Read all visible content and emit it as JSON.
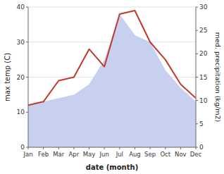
{
  "chart_data": {
    "type": "line",
    "categories": [
      "Jan",
      "Feb",
      "Mar",
      "Apr",
      "May",
      "Jun",
      "Jul",
      "Aug",
      "Sep",
      "Oct",
      "Nov",
      "Dec"
    ],
    "series": [
      {
        "type": "area",
        "color": "#c8d0f0",
        "values": [
          12,
          13,
          14,
          15,
          18,
          25,
          38,
          32,
          30,
          22,
          17,
          13
        ]
      },
      {
        "type": "line",
        "color": "#c0392b",
        "values": [
          12,
          13,
          19,
          20,
          28,
          23,
          38,
          39,
          30,
          25,
          18,
          14
        ]
      }
    ],
    "x_label": "date (month)",
    "y_label": "max temp (C)",
    "y2_label": "med. precipitation (kg/m2)",
    "ylim": [
      0,
      40
    ],
    "yticks": [
      0,
      10,
      20,
      30,
      40
    ],
    "y2lim": [
      0,
      30
    ],
    "y2ticks": [
      0,
      5,
      10,
      15,
      20,
      25,
      30
    ],
    "grid": true
  }
}
